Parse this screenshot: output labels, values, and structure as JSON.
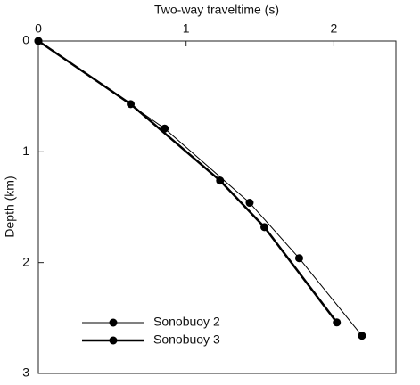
{
  "chart_data": {
    "type": "line",
    "x_label": "Two-way traveltime (s)",
    "y_label": "Depth (km)",
    "xlim": [
      0,
      2.42
    ],
    "xticks": [
      0,
      1,
      2
    ],
    "x_axis_position": "top",
    "ylim": [
      0,
      3
    ],
    "yticks": [
      0,
      1,
      2,
      3
    ],
    "y_inverted": true,
    "legend": "lower left",
    "series": [
      {
        "name": "Sonobuoy 2",
        "color": "#000000",
        "line_width": 1,
        "x": [
          0,
          0.855,
          1.43,
          1.765,
          2.19
        ],
        "values": [
          0,
          0.79,
          1.46,
          1.96,
          2.66
        ]
      },
      {
        "name": "Sonobuoy 3",
        "color": "#000000",
        "line_width": 2.5,
        "x": [
          0,
          0.625,
          1.23,
          1.53,
          2.02
        ],
        "values": [
          0,
          0.57,
          1.26,
          1.68,
          2.54
        ]
      }
    ]
  }
}
